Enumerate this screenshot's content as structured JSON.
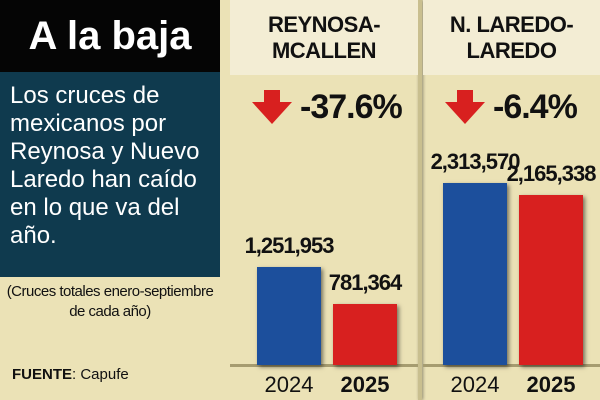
{
  "title": "A la baja",
  "description": "Los cruces de mexicanos por Reynosa y Nuevo Laredo han caído en lo que va del año.",
  "note": "(Cruces totales enero-septiembre de cada año)",
  "source": {
    "label": "FUENTE",
    "value": ": Capufe"
  },
  "colors": {
    "y2024": "#1c4f9c",
    "y2025": "#d8201f"
  },
  "chart_data": {
    "type": "bar",
    "categories": [
      "2024",
      "2025"
    ],
    "panels": [
      {
        "title": "REYNOSA-MCALLEN",
        "change": "-37.6%",
        "values": [
          1251953,
          781364
        ],
        "labels": [
          "1,251,953",
          "781,364"
        ]
      },
      {
        "title": "N. LAREDO-LAREDO",
        "change": "-6.4%",
        "values": [
          2313570,
          2165338
        ],
        "labels": [
          "2,313,570",
          "2,165,338"
        ]
      }
    ]
  }
}
